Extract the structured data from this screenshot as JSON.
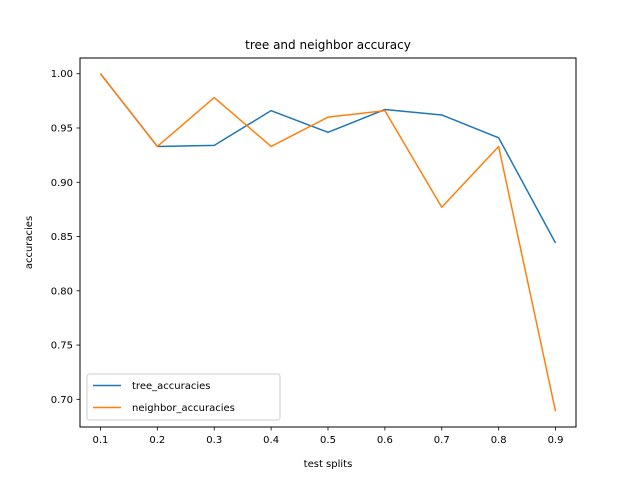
{
  "chart_data": {
    "type": "line",
    "title": "tree and neighbor accuracy",
    "xlabel": "test splits",
    "ylabel": "accuracies",
    "x": [
      0.1,
      0.2,
      0.3,
      0.4,
      0.5,
      0.6,
      0.7,
      0.8,
      0.9
    ],
    "xlim": [
      0.064,
      0.936
    ],
    "ylim": [
      0.6745,
      1.0145
    ],
    "xticks": [
      0.1,
      0.2,
      0.3,
      0.4,
      0.5,
      0.6,
      0.7,
      0.8,
      0.9
    ],
    "xtick_labels": [
      "0.1",
      "0.2",
      "0.3",
      "0.4",
      "0.5",
      "0.6",
      "0.7",
      "0.8",
      "0.9"
    ],
    "yticks": [
      0.7,
      0.75,
      0.8,
      0.85,
      0.9,
      0.95,
      1.0
    ],
    "ytick_labels": [
      "0.70",
      "0.75",
      "0.80",
      "0.85",
      "0.90",
      "0.95",
      "1.00"
    ],
    "grid": false,
    "legend_position": "lower-left",
    "series": [
      {
        "name": "tree_accuracies",
        "color": "#1f77b4",
        "values": [
          1.0,
          0.933,
          0.934,
          0.966,
          0.946,
          0.967,
          0.962,
          0.941,
          0.844
        ]
      },
      {
        "name": "neighbor_accuracies",
        "color": "#ff7f0e",
        "values": [
          1.0,
          0.933,
          0.978,
          0.933,
          0.96,
          0.966,
          0.877,
          0.933,
          0.689
        ]
      }
    ]
  }
}
